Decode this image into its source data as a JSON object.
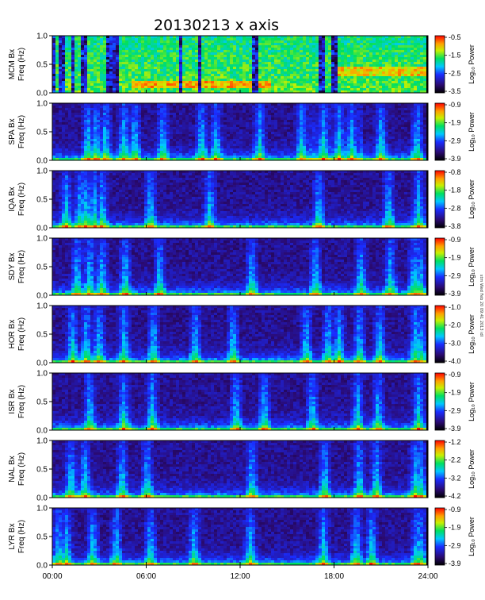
{
  "chart_data": {
    "type": "heatmap",
    "title": "20130213  x axis",
    "x_ticks": [
      "00:00",
      "06:00",
      "12:00",
      "18:00",
      "24:00"
    ],
    "x_range_hours": [
      0,
      24
    ],
    "y_ticks": [
      "0.0",
      "0.5",
      "1.0"
    ],
    "y_range_hz": [
      0,
      1
    ],
    "colorbar_label": "Log₁₀ Power",
    "panels": [
      {
        "station": "MCM",
        "ylabel_line1": "MCM Bx",
        "ylabel_line2": "Freq (Hz)",
        "cbar_ticks": [
          "-0.5",
          "-1.5",
          "-2.5",
          "-3.5"
        ]
      },
      {
        "station": "SPA",
        "ylabel_line1": "SPA Bx",
        "ylabel_line2": "Freq (Hz)",
        "cbar_ticks": [
          "-0.9",
          "-1.9",
          "-2.9",
          "-3.9"
        ]
      },
      {
        "station": "IQA",
        "ylabel_line1": "IQA Bx",
        "ylabel_line2": "Freq (Hz)",
        "cbar_ticks": [
          "-0.8",
          "-1.8",
          "-2.8",
          "-3.8"
        ]
      },
      {
        "station": "SDY",
        "ylabel_line1": "SDY Bx",
        "ylabel_line2": "Freq (Hz)",
        "cbar_ticks": [
          "-0.9",
          "-1.9",
          "-2.9",
          "-3.9"
        ]
      },
      {
        "station": "HOR",
        "ylabel_line1": "HOR Bx",
        "ylabel_line2": "Freq (Hz)",
        "cbar_ticks": [
          "-1.0",
          "-2.0",
          "-3.0",
          "-4.0"
        ]
      },
      {
        "station": "ISR",
        "ylabel_line1": "ISR Bx",
        "ylabel_line2": "Freq (Hz)",
        "cbar_ticks": [
          "-0.9",
          "-1.9",
          "-2.9",
          "-3.9"
        ]
      },
      {
        "station": "NAL",
        "ylabel_line1": "NAL Bx",
        "ylabel_line2": "Freq (Hz)",
        "cbar_ticks": [
          "-1.2",
          "-2.2",
          "-3.2",
          "-4.2"
        ]
      },
      {
        "station": "LYR",
        "ylabel_line1": "LYR Bx",
        "ylabel_line2": "Freq (Hz)",
        "cbar_ticks": [
          "-0.9",
          "-1.9",
          "-2.9",
          "-3.9"
        ]
      }
    ],
    "side_note": "stm Wed Feb 20 09:41 2013 idl"
  }
}
